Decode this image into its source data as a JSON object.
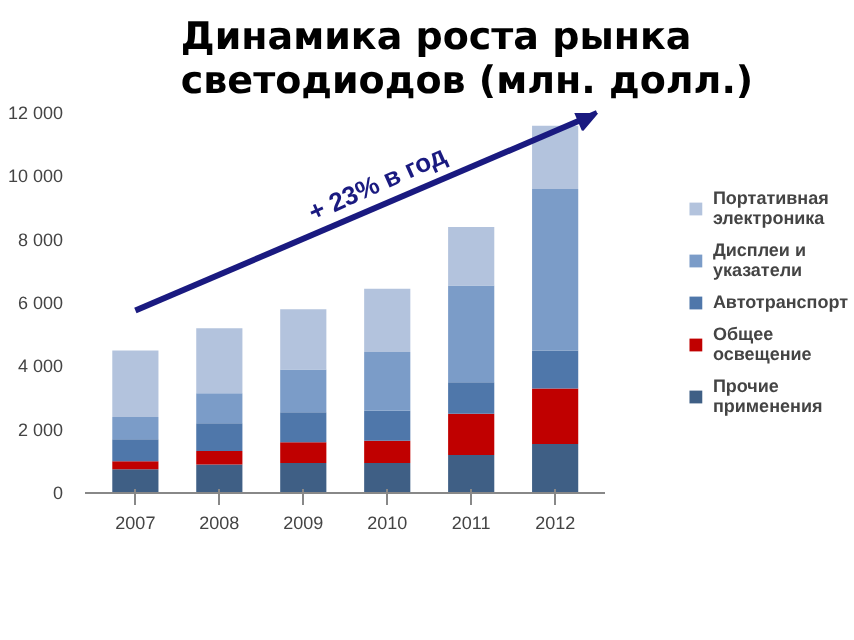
{
  "chart_data": {
    "type": "bar",
    "stacked": true,
    "title": "Динамика роста рынка светодиодов (млн. долл.)",
    "categories": [
      "2007",
      "2008",
      "2009",
      "2010",
      "2011",
      "2012"
    ],
    "series": [
      {
        "name": "Прочие применения",
        "color": "#3f5f85",
        "values": [
          750,
          900,
          950,
          950,
          1200,
          1550
        ]
      },
      {
        "name": "Общее освещение",
        "color": "#c00000",
        "values": [
          250,
          430,
          650,
          700,
          1300,
          1750
        ]
      },
      {
        "name": "Автотранспорт",
        "color": "#4f77aa",
        "values": [
          700,
          870,
          950,
          950,
          1000,
          1200
        ]
      },
      {
        "name": "Дисплеи и указатели",
        "color": "#7b9cc8",
        "values": [
          700,
          950,
          1350,
          1850,
          3050,
          5100
        ]
      },
      {
        "name": "Портативная электроника",
        "color": "#b3c3dd",
        "values": [
          2100,
          2050,
          1900,
          2000,
          1850,
          2000
        ]
      }
    ],
    "ylim": [
      0,
      12000
    ],
    "yticks": [
      0,
      {
        "value": 2000,
        "label": "2 000"
      },
      {
        "value": 4000,
        "label": "4 000"
      },
      {
        "value": 6000,
        "label": "6 000"
      },
      {
        "value": 8000,
        "label": "8 000"
      },
      {
        "value": 10000,
        "label": "10 000"
      },
      {
        "value": 12000,
        "label": "12 000"
      }
    ],
    "grid": false,
    "legend": "right",
    "annotations": [
      "+ 23% в год"
    ]
  }
}
